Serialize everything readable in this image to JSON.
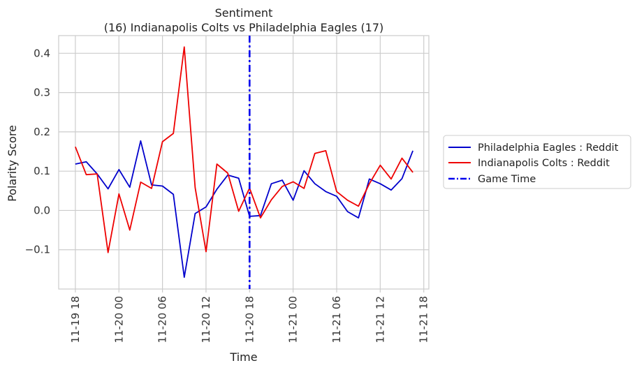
{
  "chart_data": {
    "type": "line",
    "title": "Sentiment",
    "subtitle": "(16) Indianapolis Colts vs Philadelphia Eagles (17)",
    "xlabel": "Time",
    "ylabel": "Polarity Score",
    "x_tick_labels": [
      "11-19 18",
      "11-20 00",
      "11-20 06",
      "11-20 12",
      "11-20 18",
      "11-21 00",
      "11-21 06",
      "11-21 12",
      "11-21 18"
    ],
    "x_tick_hours": [
      0,
      6,
      12,
      18,
      24,
      30,
      36,
      42,
      48
    ],
    "y_tick_labels": [
      "−0.1",
      "0.0",
      "0.1",
      "0.2",
      "0.3",
      "0.4"
    ],
    "y_tick_values": [
      -0.1,
      0.0,
      0.1,
      0.2,
      0.3,
      0.4
    ],
    "xlim_hours": [
      -2.3,
      48.7
    ],
    "ylim": [
      -0.2,
      0.445
    ],
    "grid": true,
    "legend_position": "outside-right",
    "legend_entries": [
      "Philadelphia Eagles : Reddit",
      "Indianapolis Colts : Reddit",
      "Game Time"
    ],
    "series": [
      {
        "name": "Philadelphia Eagles : Reddit",
        "color": "#0000cc",
        "x_hours": [
          0,
          1.5,
          3,
          4.5,
          6,
          7.5,
          9,
          10.5,
          12,
          13.5,
          15,
          16.5,
          18,
          19.5,
          21,
          22.5,
          24,
          25.5,
          27,
          28.5,
          30,
          31.5,
          33,
          34.5,
          36,
          37.5,
          39,
          40.5,
          42,
          43.5,
          45,
          46.5
        ],
        "values": [
          0.118,
          0.124,
          0.093,
          0.055,
          0.104,
          0.059,
          0.177,
          0.065,
          0.062,
          0.041,
          -0.17,
          -0.008,
          0.009,
          0.054,
          0.09,
          0.082,
          -0.015,
          -0.013,
          0.068,
          0.077,
          0.026,
          0.101,
          0.068,
          0.048,
          0.036,
          -0.003,
          -0.019,
          0.08,
          0.068,
          0.052,
          0.081,
          0.152
        ]
      },
      {
        "name": "Indianapolis Colts : Reddit",
        "color": "#ee0000",
        "x_hours": [
          0,
          1.5,
          3,
          4.5,
          6,
          7.5,
          9,
          10.5,
          12,
          13.5,
          15,
          16.5,
          18,
          19.5,
          21,
          22.5,
          24,
          25.5,
          27,
          28.5,
          30,
          31.5,
          33,
          34.5,
          36,
          37.5,
          39,
          40.5,
          42,
          43.5,
          45,
          46.5
        ],
        "values": [
          0.162,
          0.091,
          0.093,
          -0.107,
          0.042,
          -0.05,
          0.072,
          0.056,
          0.175,
          0.196,
          0.416,
          0.058,
          -0.105,
          0.118,
          0.095,
          -0.002,
          0.057,
          -0.019,
          0.027,
          0.061,
          0.073,
          0.056,
          0.145,
          0.152,
          0.048,
          0.026,
          0.011,
          0.068,
          0.115,
          0.08,
          0.133,
          0.097
        ]
      }
    ],
    "game_time": {
      "label": "Game Time",
      "x_hours": 24,
      "color": "#0000ee",
      "style": "dashdot"
    }
  }
}
